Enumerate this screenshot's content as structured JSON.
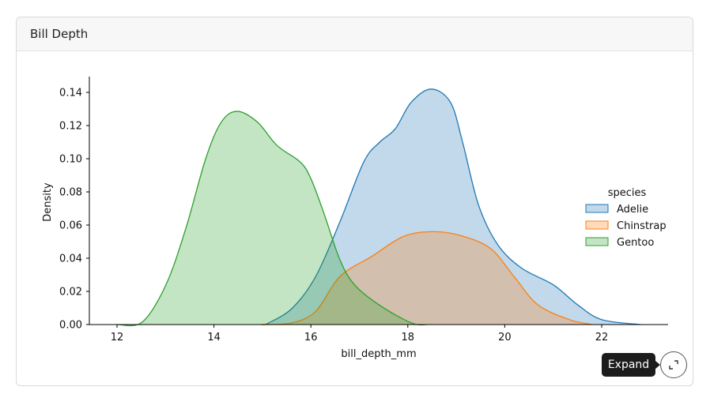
{
  "card": {
    "title": "Bill Depth"
  },
  "tooltip": {
    "label": "Expand"
  },
  "expand_button": {
    "icon": "expand-icon"
  },
  "chart_data": {
    "type": "kde",
    "xlabel": "bill_depth_mm",
    "ylabel": "Density",
    "xlim": [
      11.5,
      23.2
    ],
    "ylim": [
      0,
      0.15
    ],
    "xticks": [
      "12",
      "14",
      "16",
      "18",
      "20",
      "22"
    ],
    "yticks": [
      "0.00",
      "0.02",
      "0.04",
      "0.06",
      "0.08",
      "0.10",
      "0.12",
      "0.14"
    ],
    "legend": {
      "title": "species",
      "placement": "right"
    },
    "series": [
      {
        "name": "Adelie",
        "color": "#1f77b4",
        "x": [
          15.0,
          15.13,
          15.62,
          16.1,
          16.6,
          17.09,
          17.42,
          17.74,
          18.07,
          18.48,
          18.88,
          19.13,
          19.46,
          19.86,
          20.35,
          21.0,
          21.5,
          22.0,
          22.8
        ],
        "y": [
          0,
          0.001,
          0.01,
          0.029,
          0.062,
          0.098,
          0.11,
          0.118,
          0.134,
          0.142,
          0.134,
          0.11,
          0.072,
          0.048,
          0.034,
          0.024,
          0.012,
          0.003,
          0
        ]
      },
      {
        "name": "Chinstrap",
        "color": "#ff7f0e",
        "x": [
          14.97,
          15.6,
          16.1,
          16.6,
          17.25,
          17.9,
          18.48,
          19.05,
          19.7,
          20.19,
          20.68,
          21.33,
          21.8
        ],
        "y": [
          0,
          0.001,
          0.008,
          0.029,
          0.041,
          0.053,
          0.056,
          0.054,
          0.046,
          0.029,
          0.012,
          0.003,
          0
        ]
      },
      {
        "name": "Gentoo",
        "color": "#2ca02c",
        "x": [
          12.0,
          12.52,
          13.01,
          13.42,
          13.83,
          14.15,
          14.48,
          14.9,
          15.3,
          15.78,
          16.0,
          16.27,
          16.6,
          16.9,
          17.4,
          18.07,
          18.4
        ],
        "y": [
          0,
          0.0015,
          0.024,
          0.058,
          0.1,
          0.122,
          0.1286,
          0.122,
          0.108,
          0.098,
          0.088,
          0.067,
          0.039,
          0.024,
          0.012,
          0.001,
          0
        ]
      }
    ]
  }
}
